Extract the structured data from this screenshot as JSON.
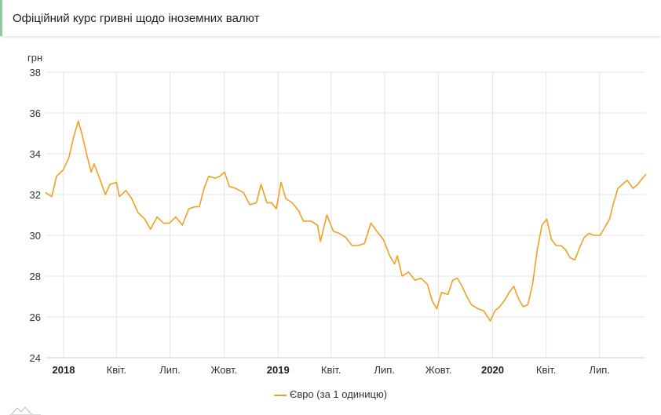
{
  "header": {
    "title": "Офіційний курс гривні щодо іноземних валют"
  },
  "chart_data": {
    "type": "line",
    "ylabel": "грн",
    "ylim": [
      24,
      38
    ],
    "yticks": [
      24,
      26,
      28,
      30,
      32,
      34,
      36,
      38
    ],
    "grid": true,
    "legend_placement": "bottom",
    "xticks": [
      {
        "date": "2018-01-01",
        "label": "2018",
        "year": true
      },
      {
        "date": "2018-04-01",
        "label": "Квіт."
      },
      {
        "date": "2018-07-01",
        "label": "Лип."
      },
      {
        "date": "2018-10-01",
        "label": "Жовт."
      },
      {
        "date": "2019-01-01",
        "label": "2019",
        "year": true
      },
      {
        "date": "2019-04-01",
        "label": "Квіт."
      },
      {
        "date": "2019-07-01",
        "label": "Лип."
      },
      {
        "date": "2019-10-01",
        "label": "Жовт."
      },
      {
        "date": "2020-01-01",
        "label": "2020",
        "year": true
      },
      {
        "date": "2020-04-01",
        "label": "Квіт."
      },
      {
        "date": "2020-07-01",
        "label": "Лип."
      }
    ],
    "series": [
      {
        "name": "Євро (за 1 одиницю)",
        "color": "#f0a020",
        "points": [
          [
            "2017-12-01",
            32.1
          ],
          [
            "2017-12-12",
            31.9
          ],
          [
            "2017-12-20",
            32.9
          ],
          [
            "2017-12-31",
            33.2
          ],
          [
            "2018-01-10",
            33.8
          ],
          [
            "2018-01-18",
            34.8
          ],
          [
            "2018-01-26",
            35.6
          ],
          [
            "2018-02-01",
            35.0
          ],
          [
            "2018-02-09",
            34.0
          ],
          [
            "2018-02-17",
            33.1
          ],
          [
            "2018-02-22",
            33.5
          ],
          [
            "2018-03-02",
            32.9
          ],
          [
            "2018-03-13",
            32.0
          ],
          [
            "2018-03-21",
            32.5
          ],
          [
            "2018-04-01",
            32.6
          ],
          [
            "2018-04-06",
            31.9
          ],
          [
            "2018-04-17",
            32.2
          ],
          [
            "2018-04-27",
            31.8
          ],
          [
            "2018-05-08",
            31.1
          ],
          [
            "2018-05-19",
            30.8
          ],
          [
            "2018-05-29",
            30.3
          ],
          [
            "2018-06-09",
            30.9
          ],
          [
            "2018-06-20",
            30.6
          ],
          [
            "2018-06-30",
            30.6
          ],
          [
            "2018-07-11",
            30.9
          ],
          [
            "2018-07-22",
            30.5
          ],
          [
            "2018-08-02",
            31.3
          ],
          [
            "2018-08-12",
            31.4
          ],
          [
            "2018-08-20",
            31.4
          ],
          [
            "2018-08-28",
            32.3
          ],
          [
            "2018-09-05",
            32.9
          ],
          [
            "2018-09-16",
            32.8
          ],
          [
            "2018-09-24",
            32.9
          ],
          [
            "2018-10-02",
            33.1
          ],
          [
            "2018-10-10",
            32.4
          ],
          [
            "2018-10-21",
            32.3
          ],
          [
            "2018-11-03",
            32.1
          ],
          [
            "2018-11-14",
            31.5
          ],
          [
            "2018-11-25",
            31.6
          ],
          [
            "2018-12-03",
            32.5
          ],
          [
            "2018-12-13",
            31.6
          ],
          [
            "2018-12-21",
            31.6
          ],
          [
            "2018-12-29",
            31.3
          ],
          [
            "2019-01-06",
            32.6
          ],
          [
            "2019-01-14",
            31.8
          ],
          [
            "2019-01-25",
            31.6
          ],
          [
            "2019-02-05",
            31.2
          ],
          [
            "2019-02-13",
            30.7
          ],
          [
            "2019-02-26",
            30.7
          ],
          [
            "2019-03-09",
            30.5
          ],
          [
            "2019-03-14",
            29.7
          ],
          [
            "2019-03-25",
            31.0
          ],
          [
            "2019-04-05",
            30.2
          ],
          [
            "2019-04-15",
            30.1
          ],
          [
            "2019-04-26",
            29.9
          ],
          [
            "2019-05-07",
            29.5
          ],
          [
            "2019-05-17",
            29.5
          ],
          [
            "2019-05-28",
            29.6
          ],
          [
            "2019-06-08",
            30.6
          ],
          [
            "2019-06-18",
            30.2
          ],
          [
            "2019-06-29",
            29.8
          ],
          [
            "2019-07-10",
            29.0
          ],
          [
            "2019-07-18",
            28.6
          ],
          [
            "2019-07-23",
            29.0
          ],
          [
            "2019-07-31",
            28.0
          ],
          [
            "2019-08-11",
            28.2
          ],
          [
            "2019-08-22",
            27.8
          ],
          [
            "2019-09-01",
            27.9
          ],
          [
            "2019-09-12",
            27.6
          ],
          [
            "2019-09-20",
            26.8
          ],
          [
            "2019-09-28",
            26.4
          ],
          [
            "2019-10-06",
            27.2
          ],
          [
            "2019-10-17",
            27.1
          ],
          [
            "2019-10-25",
            27.8
          ],
          [
            "2019-11-02",
            27.9
          ],
          [
            "2019-11-10",
            27.5
          ],
          [
            "2019-11-18",
            27.0
          ],
          [
            "2019-11-26",
            26.6
          ],
          [
            "2019-12-07",
            26.4
          ],
          [
            "2019-12-17",
            26.3
          ],
          [
            "2019-12-28",
            25.8
          ],
          [
            "2020-01-05",
            26.3
          ],
          [
            "2020-01-13",
            26.5
          ],
          [
            "2020-01-21",
            26.8
          ],
          [
            "2020-01-29",
            27.2
          ],
          [
            "2020-02-06",
            27.5
          ],
          [
            "2020-02-14",
            26.9
          ],
          [
            "2020-02-22",
            26.5
          ],
          [
            "2020-03-01",
            26.6
          ],
          [
            "2020-03-09",
            27.6
          ],
          [
            "2020-03-17",
            29.3
          ],
          [
            "2020-03-25",
            30.5
          ],
          [
            "2020-04-02",
            30.8
          ],
          [
            "2020-04-10",
            29.8
          ],
          [
            "2020-04-18",
            29.5
          ],
          [
            "2020-04-26",
            29.5
          ],
          [
            "2020-05-04",
            29.3
          ],
          [
            "2020-05-12",
            28.9
          ],
          [
            "2020-05-20",
            28.8
          ],
          [
            "2020-05-28",
            29.4
          ],
          [
            "2020-06-05",
            29.9
          ],
          [
            "2020-06-13",
            30.1
          ],
          [
            "2020-06-21",
            30.0
          ],
          [
            "2020-07-02",
            30.0
          ],
          [
            "2020-07-10",
            30.4
          ],
          [
            "2020-07-18",
            30.8
          ],
          [
            "2020-07-24",
            31.5
          ],
          [
            "2020-08-01",
            32.3
          ],
          [
            "2020-08-09",
            32.5
          ],
          [
            "2020-08-17",
            32.7
          ],
          [
            "2020-08-27",
            32.3
          ],
          [
            "2020-09-04",
            32.5
          ],
          [
            "2020-09-12",
            32.8
          ],
          [
            "2020-09-18",
            33.0
          ]
        ]
      }
    ]
  }
}
